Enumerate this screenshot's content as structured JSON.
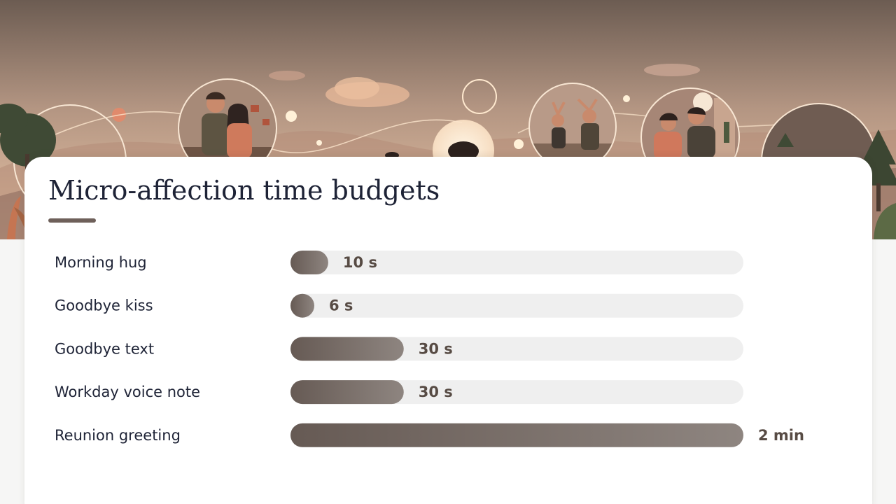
{
  "colors": {
    "bar_start": "#665a54",
    "bar_end": "#8e8580",
    "track": "#efefef",
    "title_text": "#1e2336",
    "value_text": "#574b44",
    "underline": "#6e605a"
  },
  "hero": {
    "image": "illustrated sunset banner with couples in circular vignettes"
  },
  "chart_data": {
    "type": "bar",
    "orientation": "horizontal",
    "title": "Micro-affection time budgets",
    "categories": [
      "Morning hug",
      "Goodbye kiss",
      "Goodbye text",
      "Workday voice note",
      "Reunion greeting"
    ],
    "values": [
      10,
      6,
      30,
      30,
      120
    ],
    "unit": "seconds",
    "value_labels": [
      "10 s",
      "6 s",
      "30 s",
      "30 s",
      "2 min"
    ],
    "xlim": [
      0,
      120
    ],
    "grid": false,
    "legend": "none"
  }
}
